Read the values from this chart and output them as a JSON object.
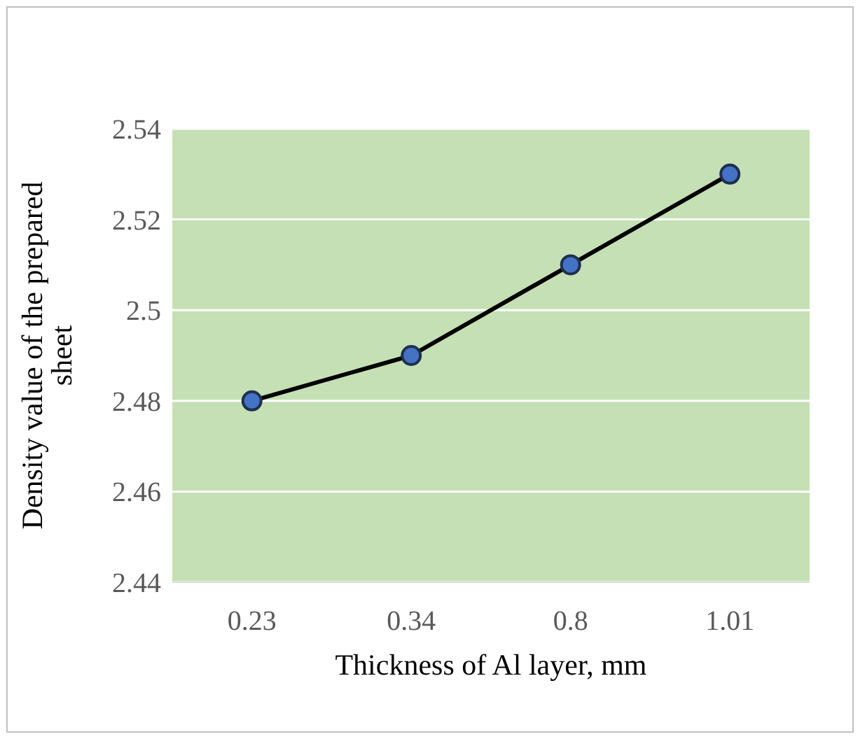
{
  "chart_data": {
    "type": "line",
    "xlabel": "Thickness of Al layer, mm",
    "ylabel": "Density value of the prepared sheet",
    "categories": [
      "0.23",
      "0.34",
      "0.8",
      "1.01"
    ],
    "series": [
      {
        "color": "#4472c4",
        "values": [
          2.48,
          2.49,
          2.51,
          2.53
        ]
      }
    ],
    "ylim": [
      2.44,
      2.54
    ],
    "yticks": [
      2.44,
      2.46,
      2.48,
      {
        "value": 2.5,
        "label": "2.5"
      },
      2.52,
      2.54
    ],
    "grid": "y",
    "marker": "circle",
    "line_style": "solid"
  }
}
